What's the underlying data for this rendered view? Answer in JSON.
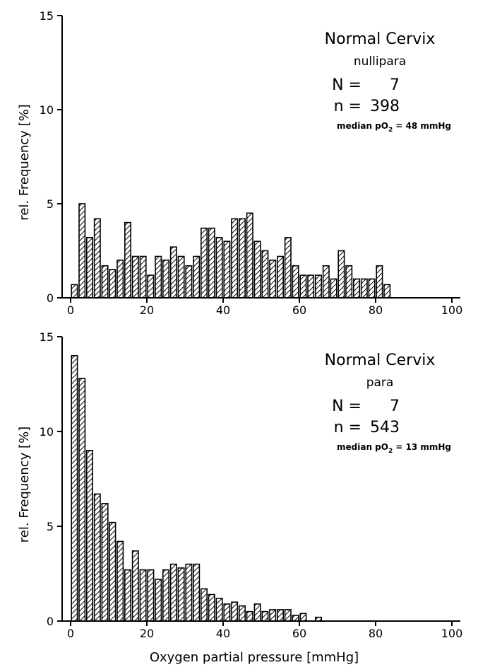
{
  "chart_data": [
    {
      "type": "bar",
      "bin_width": 2,
      "x_start": 0,
      "xlim": [
        0,
        100
      ],
      "ylim": [
        0,
        15
      ],
      "xticks": [
        "0",
        "20",
        "40",
        "60",
        "80",
        "100"
      ],
      "yticks": [
        "0",
        "5",
        "10",
        "15"
      ],
      "ylabel": "rel. Frequency [%]",
      "xlabel": "",
      "annotation": {
        "title": "Normal Cervix",
        "subtitle": "nullipara",
        "N_label": "N =",
        "N_value": "7",
        "n_label": "n =",
        "n_value": "398",
        "median_label": "median pO",
        "median_sub": "2",
        "median_value": "= 48 mmHg"
      },
      "values": [
        0.7,
        5.0,
        3.2,
        4.2,
        1.7,
        1.5,
        2.0,
        4.0,
        2.2,
        2.2,
        1.2,
        2.2,
        2.0,
        2.7,
        2.2,
        1.7,
        2.2,
        3.7,
        3.7,
        3.2,
        3.0,
        4.2,
        4.2,
        4.5,
        3.0,
        2.5,
        2.0,
        2.2,
        3.2,
        1.7,
        1.2,
        1.2,
        1.2,
        1.7,
        1.0,
        2.5,
        1.7,
        1.0,
        1.0,
        1.0,
        1.7,
        0.7
      ]
    },
    {
      "type": "bar",
      "bin_width": 2,
      "x_start": 0,
      "xlim": [
        0,
        100
      ],
      "ylim": [
        0,
        15
      ],
      "xticks": [
        "0",
        "20",
        "40",
        "60",
        "80",
        "100"
      ],
      "yticks": [
        "0",
        "5",
        "10",
        "15"
      ],
      "ylabel": "rel. Frequency [%]",
      "xlabel": "Oxygen partial pressure [mmHg]",
      "annotation": {
        "title": "Normal Cervix",
        "subtitle": "para",
        "N_label": "N =",
        "N_value": "7",
        "n_label": "n =",
        "n_value": "543",
        "median_label": "median pO",
        "median_sub": "2",
        "median_value": "= 13 mmHg"
      },
      "values": [
        14.0,
        12.8,
        9.0,
        6.7,
        6.2,
        5.2,
        4.2,
        2.7,
        3.7,
        2.7,
        2.7,
        2.2,
        2.7,
        3.0,
        2.8,
        3.0,
        3.0,
        1.7,
        1.4,
        1.2,
        0.9,
        1.0,
        0.8,
        0.5,
        0.9,
        0.5,
        0.6,
        0.6,
        0.6,
        0.3,
        0.4,
        0,
        0.2,
        0,
        0,
        0,
        0,
        0,
        0,
        0,
        0,
        0,
        0,
        0,
        0,
        0,
        0,
        0,
        0,
        0
      ]
    }
  ]
}
